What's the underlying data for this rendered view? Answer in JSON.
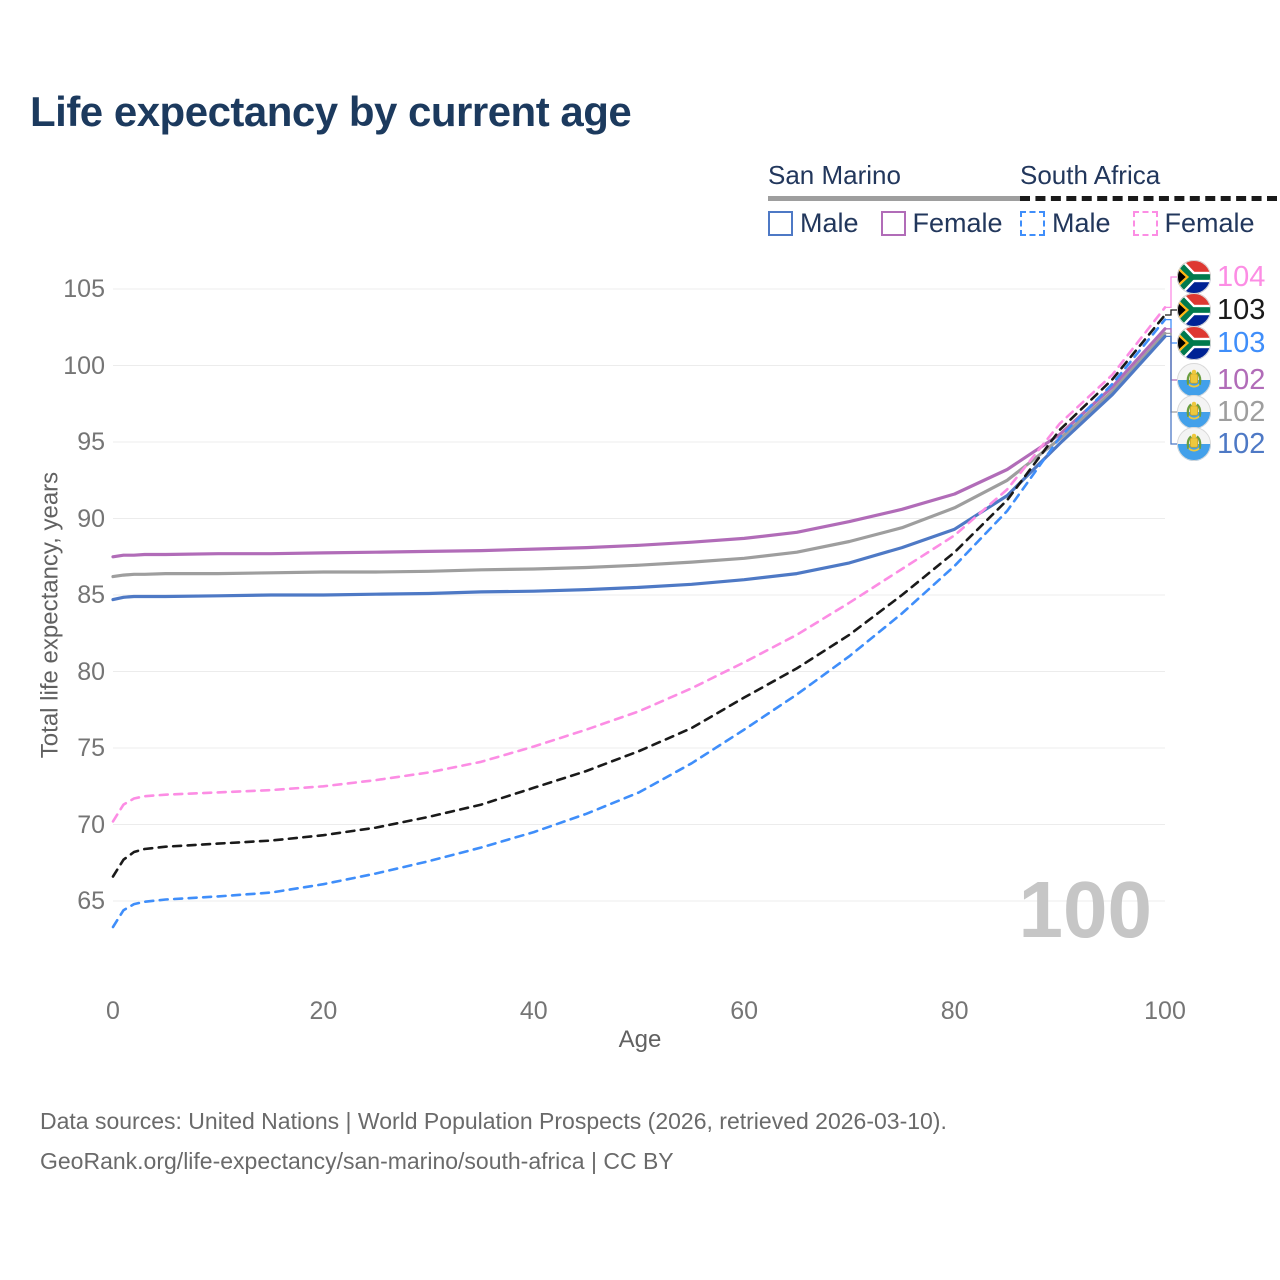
{
  "title": "Life expectancy by current age",
  "watermark": "100",
  "legend": {
    "groups": [
      {
        "name": "San Marino",
        "line_style": "solid",
        "rule_color": "#9e9e9e",
        "items": [
          {
            "label": "Male",
            "color": "#4e79c5",
            "dashed": false
          },
          {
            "label": "Female",
            "color": "#b16cb8",
            "dashed": false
          }
        ]
      },
      {
        "name": "South Africa",
        "line_style": "dashed",
        "rule_color": "#1a1a1a",
        "items": [
          {
            "label": "Male",
            "color": "#3f8efa",
            "dashed": true
          },
          {
            "label": "Female",
            "color": "#fc8de4",
            "dashed": true
          }
        ]
      }
    ]
  },
  "x_axis": {
    "title": "Age",
    "ticks": [
      0,
      20,
      40,
      60,
      80,
      100
    ],
    "range": [
      0,
      100
    ]
  },
  "y_axis": {
    "title": "Total life expectancy, years",
    "ticks": [
      65,
      70,
      75,
      80,
      85,
      90,
      95,
      100,
      105
    ],
    "range": [
      63,
      105
    ]
  },
  "footer": {
    "line1": "Data sources: United Nations | World Population Prospects (2026, retrieved 2026-03-10).",
    "line2": "GeoRank.org/life-expectancy/san-marino/south-africa | CC BY"
  },
  "chart_data": {
    "type": "line",
    "title": "Life expectancy by current age",
    "xlabel": "Age",
    "ylabel": "Total life expectancy, years",
    "xlim": [
      0,
      100
    ],
    "ylim": [
      63,
      105
    ],
    "grid": "horizontal",
    "legend_position": "top-right",
    "x": [
      0,
      1,
      2,
      3,
      5,
      10,
      15,
      20,
      25,
      30,
      35,
      40,
      45,
      50,
      55,
      60,
      65,
      70,
      75,
      80,
      85,
      90,
      95,
      100
    ],
    "series": [
      {
        "name": "San Marino Female",
        "country": "San Marino",
        "sex": "Female",
        "flag": "san-marino-flag-icon",
        "color": "#b16cb8",
        "dashed": false,
        "end_label": "102",
        "values": [
          87.5,
          87.6,
          87.6,
          87.65,
          87.65,
          87.7,
          87.7,
          87.75,
          87.8,
          87.85,
          87.9,
          88.0,
          88.1,
          88.25,
          88.45,
          88.7,
          89.1,
          89.8,
          90.6,
          91.6,
          93.2,
          95.5,
          98.6,
          102.4
        ]
      },
      {
        "name": "San Marino Total",
        "country": "San Marino",
        "sex": "Both",
        "flag": "san-marino-flag-icon",
        "color": "#9e9e9e",
        "dashed": false,
        "end_label": "102",
        "values": [
          86.2,
          86.3,
          86.35,
          86.35,
          86.4,
          86.4,
          86.45,
          86.5,
          86.5,
          86.55,
          86.65,
          86.7,
          86.8,
          86.95,
          87.15,
          87.4,
          87.8,
          88.5,
          89.4,
          90.7,
          92.5,
          95.2,
          98.3,
          102.1
        ]
      },
      {
        "name": "San Marino Male",
        "country": "San Marino",
        "sex": "Male",
        "flag": "san-marino-flag-icon",
        "color": "#4e79c5",
        "dashed": false,
        "end_label": "102",
        "values": [
          84.7,
          84.85,
          84.9,
          84.9,
          84.9,
          84.95,
          85.0,
          85.0,
          85.05,
          85.1,
          85.2,
          85.25,
          85.35,
          85.5,
          85.7,
          86.0,
          86.4,
          87.1,
          88.1,
          89.3,
          91.5,
          94.9,
          98.1,
          101.9
        ]
      },
      {
        "name": "South Africa Female",
        "country": "South Africa",
        "sex": "Female",
        "flag": "south-africa-flag-icon",
        "color": "#fc8de4",
        "dashed": true,
        "end_label": "104",
        "values": [
          70.2,
          71.3,
          71.7,
          71.85,
          71.95,
          72.1,
          72.25,
          72.5,
          72.9,
          73.4,
          74.1,
          75.1,
          76.2,
          77.4,
          78.9,
          80.6,
          82.4,
          84.5,
          86.7,
          88.9,
          91.9,
          96.2,
          99.4,
          103.8
        ]
      },
      {
        "name": "South Africa Total",
        "country": "South Africa",
        "sex": "Both",
        "flag": "south-africa-flag-icon",
        "color": "#1a1a1a",
        "dashed": true,
        "end_label": "103",
        "values": [
          66.6,
          67.7,
          68.2,
          68.4,
          68.55,
          68.75,
          68.95,
          69.3,
          69.8,
          70.5,
          71.3,
          72.4,
          73.5,
          74.8,
          76.3,
          78.3,
          80.2,
          82.4,
          85.0,
          87.8,
          91.2,
          95.8,
          99.1,
          103.3
        ]
      },
      {
        "name": "South Africa Male",
        "country": "South Africa",
        "sex": "Male",
        "flag": "south-africa-flag-icon",
        "color": "#3f8efa",
        "dashed": true,
        "end_label": "103",
        "values": [
          63.3,
          64.4,
          64.8,
          64.95,
          65.1,
          65.3,
          65.55,
          66.1,
          66.8,
          67.6,
          68.5,
          69.5,
          70.7,
          72.1,
          74.0,
          76.2,
          78.5,
          81.0,
          83.8,
          86.9,
          90.5,
          95.3,
          98.8,
          103.0
        ]
      }
    ]
  }
}
